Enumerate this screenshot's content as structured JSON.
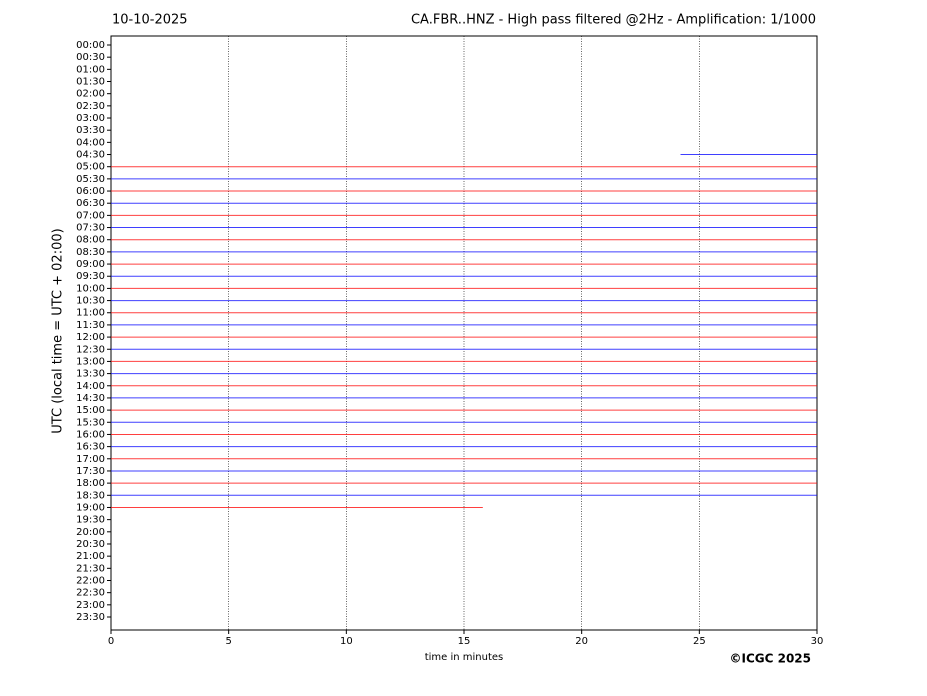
{
  "chart_data": {
    "type": "helicorder",
    "title_left": "10-10-2025",
    "title": "CA.FBR..HNZ - High pass filtered @2Hz - Amplification: 1/1000",
    "ylabel": "UTC (local time = UTC + 02:00)",
    "xlabel": "time in minutes",
    "copyright": "©ICGC 2025",
    "xlim": [
      0,
      30
    ],
    "xticks": [
      0,
      5,
      10,
      15,
      20,
      25,
      30
    ],
    "grid": true,
    "colors": [
      "#ff0000",
      "#0000ff"
    ],
    "categories": [
      "00:00",
      "00:30",
      "01:00",
      "01:30",
      "02:00",
      "02:30",
      "03:00",
      "03:30",
      "04:00",
      "04:30",
      "05:00",
      "05:30",
      "06:00",
      "06:30",
      "07:00",
      "07:30",
      "08:00",
      "08:30",
      "09:00",
      "09:30",
      "10:00",
      "10:30",
      "11:00",
      "11:30",
      "12:00",
      "12:30",
      "13:00",
      "13:30",
      "14:00",
      "14:30",
      "15:00",
      "15:30",
      "16:00",
      "16:30",
      "17:00",
      "17:30",
      "18:00",
      "18:30",
      "19:00",
      "19:30",
      "20:00",
      "20:30",
      "21:00",
      "21:30",
      "22:00",
      "22:30",
      "23:00",
      "23:30"
    ],
    "traces": [
      null,
      null,
      null,
      null,
      null,
      null,
      null,
      null,
      null,
      {
        "start": 24.2,
        "end": 30
      },
      {
        "start": 0,
        "end": 30
      },
      {
        "start": 0,
        "end": 30
      },
      {
        "start": 0,
        "end": 30
      },
      {
        "start": 0,
        "end": 30
      },
      {
        "start": 0,
        "end": 30
      },
      {
        "start": 0,
        "end": 30
      },
      {
        "start": 0,
        "end": 30
      },
      {
        "start": 0,
        "end": 30
      },
      {
        "start": 0,
        "end": 30
      },
      {
        "start": 0,
        "end": 30
      },
      {
        "start": 0,
        "end": 30
      },
      {
        "start": 0,
        "end": 30
      },
      {
        "start": 0,
        "end": 30
      },
      {
        "start": 0,
        "end": 30
      },
      {
        "start": 0,
        "end": 30
      },
      {
        "start": 0,
        "end": 30
      },
      {
        "start": 0,
        "end": 30
      },
      {
        "start": 0,
        "end": 30
      },
      {
        "start": 0,
        "end": 30
      },
      {
        "start": 0,
        "end": 30
      },
      {
        "start": 0,
        "end": 30
      },
      {
        "start": 0,
        "end": 30
      },
      {
        "start": 0,
        "end": 30
      },
      {
        "start": 0,
        "end": 30
      },
      {
        "start": 0,
        "end": 30
      },
      {
        "start": 0,
        "end": 30
      },
      {
        "start": 0,
        "end": 30
      },
      {
        "start": 0,
        "end": 30
      },
      {
        "start": 0,
        "end": 15.8
      },
      null,
      null,
      null,
      null,
      null,
      null,
      null,
      null,
      null
    ]
  }
}
